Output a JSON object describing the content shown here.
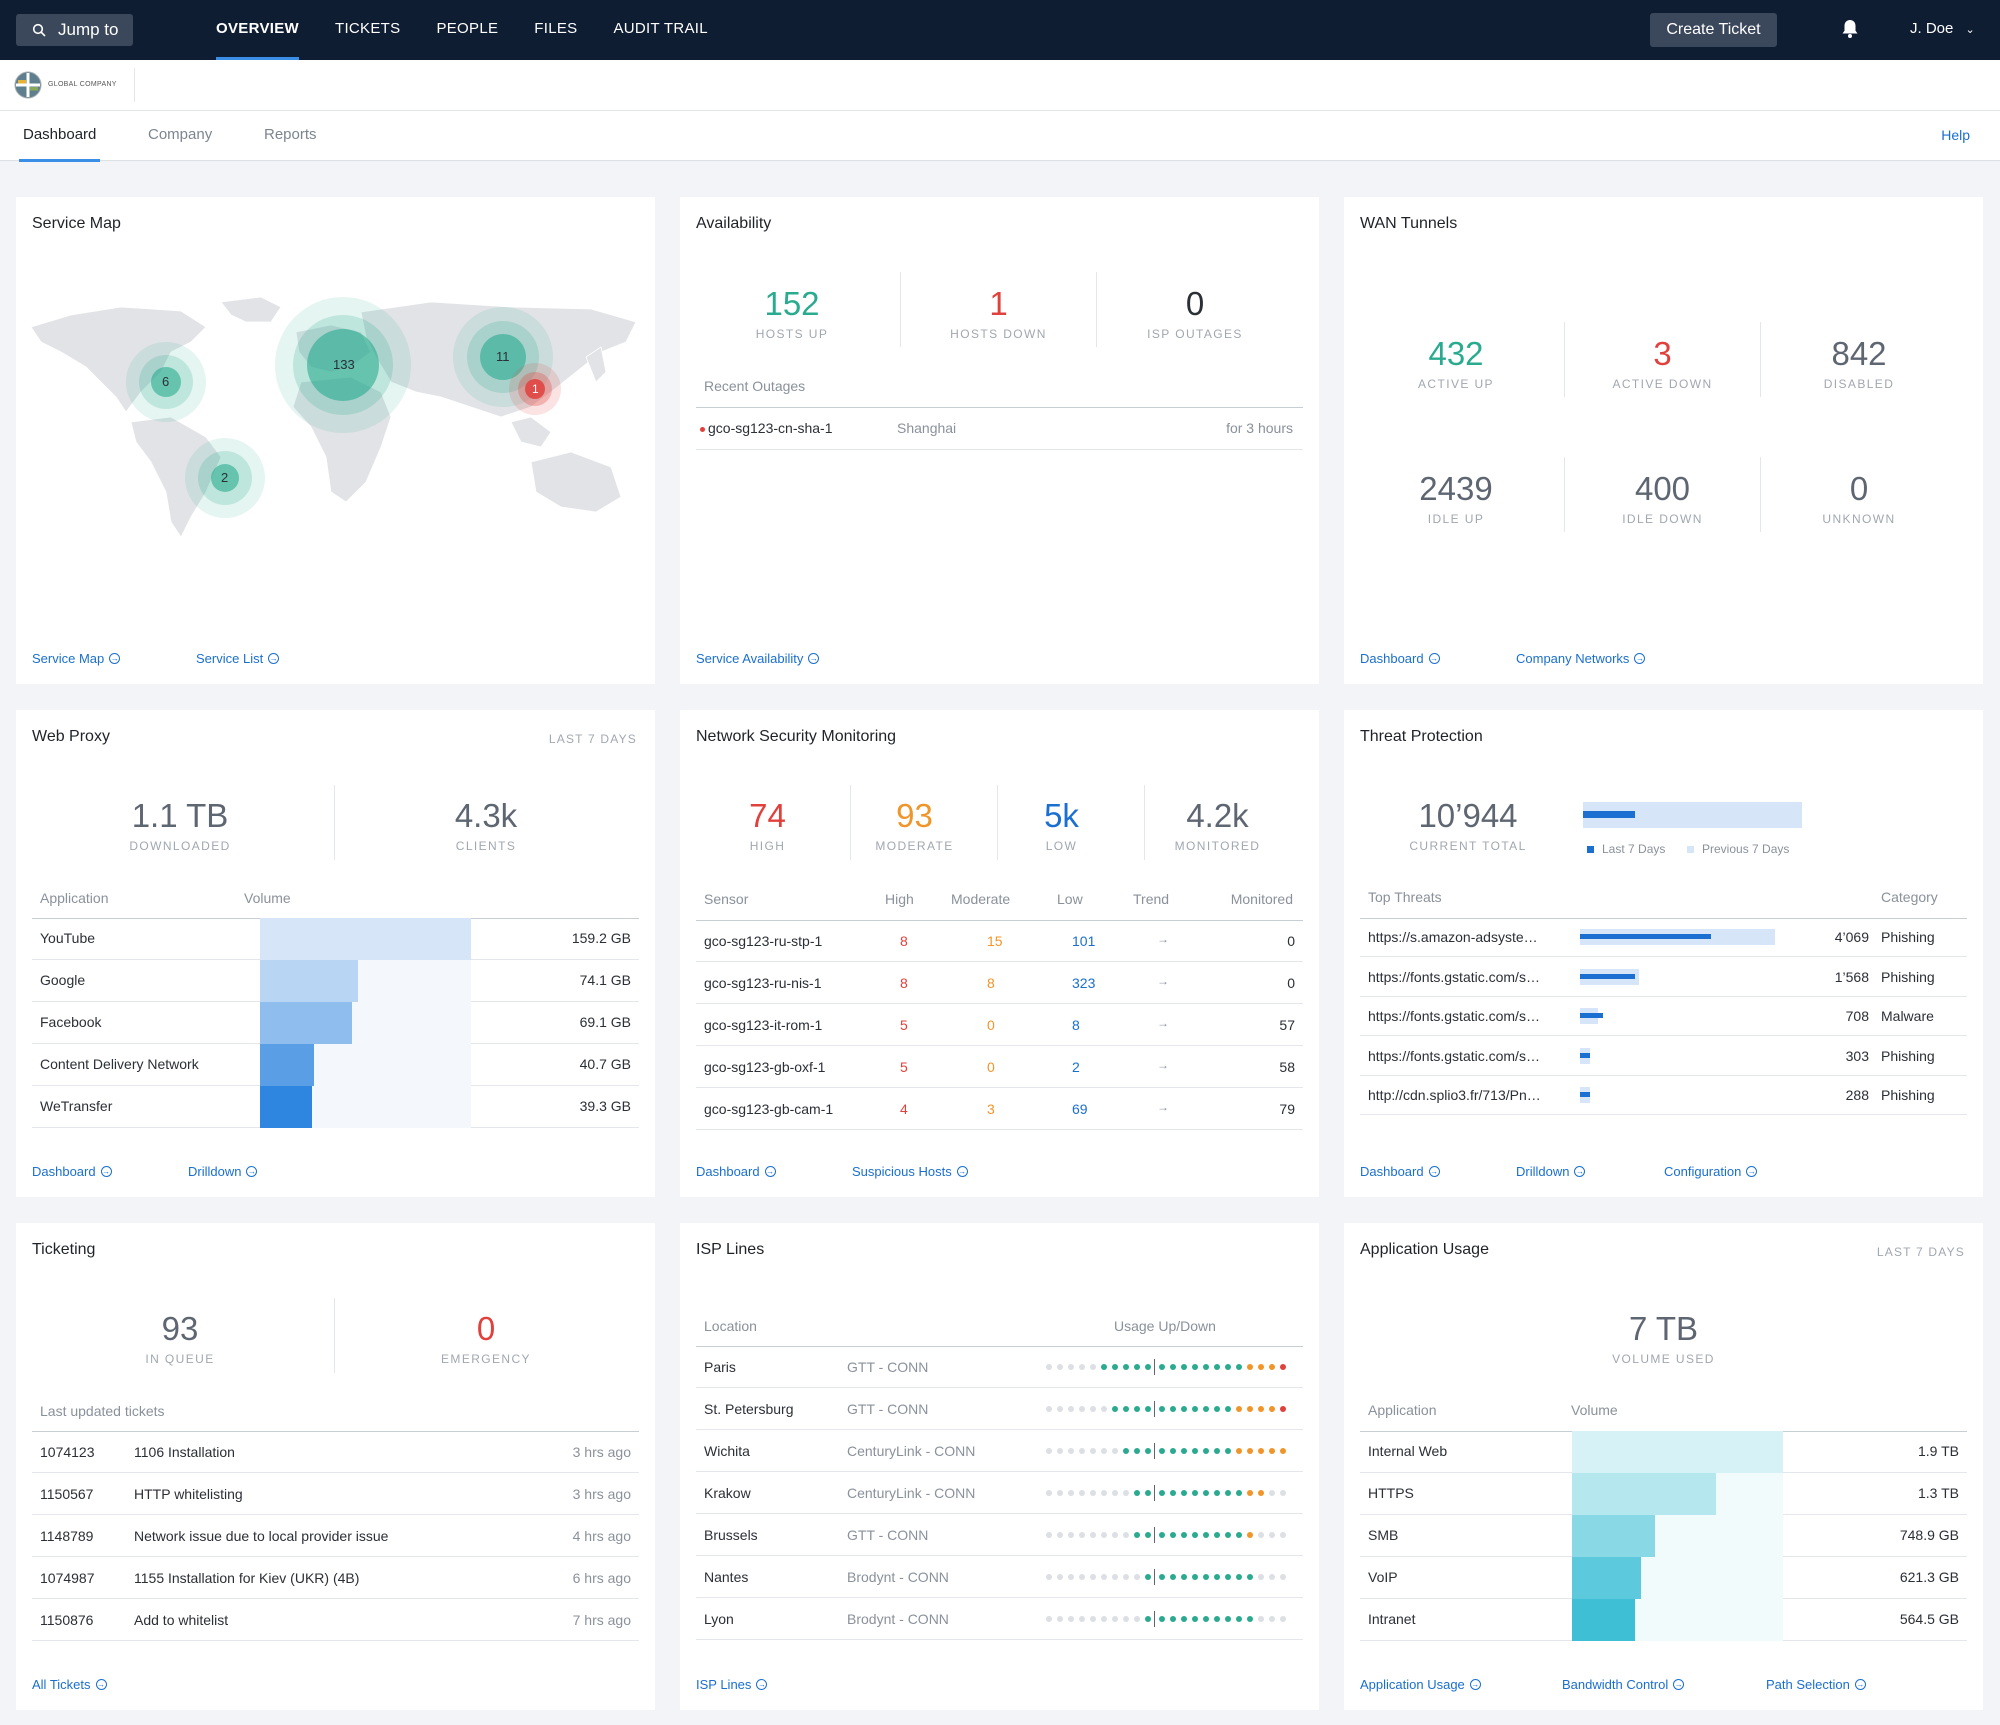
{
  "topbar": {
    "jump_label": "Jump to",
    "nav": [
      "OVERVIEW",
      "TICKETS",
      "PEOPLE",
      "FILES",
      "AUDIT TRAIL"
    ],
    "create_label": "Create Ticket",
    "user": "J. Doe"
  },
  "brand": {
    "name": "GLOBAL COMPANY"
  },
  "subnav": {
    "tabs": [
      "Dashboard",
      "Company",
      "Reports"
    ],
    "help": "Help"
  },
  "service_map": {
    "title": "Service Map",
    "clusters": [
      "133",
      "11",
      "6",
      "2",
      "1"
    ],
    "links": [
      "Service Map",
      "Service List"
    ]
  },
  "availability": {
    "title": "Availability",
    "stats": [
      {
        "value": "152",
        "label": "HOSTS UP"
      },
      {
        "value": "1",
        "label": "HOSTS DOWN"
      },
      {
        "value": "0",
        "label": "ISP OUTAGES"
      }
    ],
    "recent_label": "Recent Outages",
    "outage": {
      "host": "gco-sg123-cn-sha-1",
      "city": "Shanghai",
      "duration": "for 3 hours"
    },
    "links": [
      "Service Availability"
    ]
  },
  "wan": {
    "title": "WAN Tunnels",
    "stats": [
      {
        "value": "432",
        "label": "ACTIVE UP"
      },
      {
        "value": "3",
        "label": "ACTIVE DOWN"
      },
      {
        "value": "842",
        "label": "DISABLED"
      },
      {
        "value": "2439",
        "label": "IDLE UP"
      },
      {
        "value": "400",
        "label": "IDLE DOWN"
      },
      {
        "value": "0",
        "label": "UNKNOWN"
      }
    ],
    "links": [
      "Dashboard",
      "Company Networks"
    ]
  },
  "proxy": {
    "title": "Web Proxy",
    "range": "LAST 7 DAYS",
    "stats": [
      {
        "value": "1.1 TB",
        "label": "DOWNLOADED"
      },
      {
        "value": "4.3k",
        "label": "CLIENTS"
      }
    ],
    "headers": [
      "Application",
      "Volume"
    ],
    "rows": [
      {
        "app": "YouTube",
        "vol": "159.2 GB",
        "gb": 159.2,
        "color": "#d6e6f8"
      },
      {
        "app": "Google",
        "vol": "74.1 GB",
        "gb": 74.1,
        "color": "#b8d5f3"
      },
      {
        "app": "Facebook",
        "vol": "69.1 GB",
        "gb": 69.1,
        "color": "#8fbdee"
      },
      {
        "app": "Content Delivery Network",
        "vol": "40.7 GB",
        "gb": 40.7,
        "color": "#5a9fe6"
      },
      {
        "app": "WeTransfer",
        "vol": "39.3 GB",
        "gb": 39.3,
        "color": "#2f86e0"
      }
    ],
    "links": [
      "Dashboard",
      "Drilldown"
    ]
  },
  "nsm": {
    "title": "Network Security Monitoring",
    "stats": [
      {
        "value": "74",
        "label": "HIGH"
      },
      {
        "value": "93",
        "label": "MODERATE"
      },
      {
        "value": "5k",
        "label": "LOW"
      },
      {
        "value": "4.2k",
        "label": "MONITORED"
      }
    ],
    "headers": [
      "Sensor",
      "High",
      "Moderate",
      "Low",
      "Trend",
      "Monitored"
    ],
    "rows": [
      {
        "sensor": "gco-sg123-ru-stp-1",
        "high": "8",
        "mod": "15",
        "low": "101",
        "mon": "0"
      },
      {
        "sensor": "gco-sg123-ru-nis-1",
        "high": "8",
        "mod": "8",
        "low": "323",
        "mon": "0"
      },
      {
        "sensor": "gco-sg123-it-rom-1",
        "high": "5",
        "mod": "0",
        "low": "8",
        "mon": "57"
      },
      {
        "sensor": "gco-sg123-gb-oxf-1",
        "high": "5",
        "mod": "0",
        "low": "2",
        "mon": "58"
      },
      {
        "sensor": "gco-sg123-gb-cam-1",
        "high": "4",
        "mod": "3",
        "low": "69",
        "mon": "79"
      }
    ],
    "links": [
      "Dashboard",
      "Suspicious Hosts"
    ]
  },
  "threat": {
    "title": "Threat Protection",
    "stat": {
      "value": "10’944",
      "label": "CURRENT TOTAL"
    },
    "legend": [
      "Last 7 Days",
      "Previous 7 Days"
    ],
    "headers": [
      "Top Threats",
      "Category"
    ],
    "rows": [
      {
        "url": "https://s.amazon-adsyste…",
        "count": "4’069",
        "cat": "Phishing",
        "cur": 0.67,
        "prev": 1.0
      },
      {
        "url": "https://fonts.gstatic.com/s…",
        "count": "1’568",
        "cat": "Phishing",
        "cur": 0.28,
        "prev": 0.3
      },
      {
        "url": "https://fonts.gstatic.com/s…",
        "count": "708",
        "cat": "Malware",
        "cur": 0.12,
        "prev": 0.09
      },
      {
        "url": "https://fonts.gstatic.com/s…",
        "count": "303",
        "cat": "Phishing",
        "cur": 0.05,
        "prev": 0.05
      },
      {
        "url": "http://cdn.splio3.fr/713/Pn…",
        "count": "288",
        "cat": "Phishing",
        "cur": 0.05,
        "prev": 0.05
      }
    ],
    "links": [
      "Dashboard",
      "Drilldown",
      "Configuration"
    ]
  },
  "ticketing": {
    "title": "Ticketing",
    "stats": [
      {
        "value": "93",
        "label": "IN QUEUE"
      },
      {
        "value": "0",
        "label": "EMERGENCY"
      }
    ],
    "recent_label": "Last updated tickets",
    "rows": [
      {
        "id": "1074123",
        "title": "1106 Installation",
        "time": "3 hrs ago"
      },
      {
        "id": "1150567",
        "title": "HTTP whitelisting",
        "time": "3 hrs ago"
      },
      {
        "id": "1148789",
        "title": "Network issue due to local provider issue",
        "time": "4 hrs ago"
      },
      {
        "id": "1074987",
        "title": "1155 Installation for Kiev (UKR) (4B)",
        "time": "6 hrs ago"
      },
      {
        "id": "1150876",
        "title": "Add to whitelist",
        "time": "7 hrs ago"
      }
    ],
    "links": [
      "All Tickets"
    ]
  },
  "isp": {
    "title": "ISP Lines",
    "headers": [
      "Location",
      "Usage Up/Down"
    ],
    "rows": [
      {
        "loc": "Paris",
        "prov": "GTT - CONN",
        "up": 5,
        "down": [
          8,
          3,
          1
        ]
      },
      {
        "loc": "St. Petersburg",
        "prov": "GTT - CONN",
        "up": 4,
        "down": [
          7,
          4,
          1
        ]
      },
      {
        "loc": "Wichita",
        "prov": "CenturyLink - CONN",
        "up": 3,
        "down": [
          7,
          5,
          0
        ]
      },
      {
        "loc": "Krakow",
        "prov": "CenturyLink - CONN",
        "up": 2,
        "down": [
          8,
          2,
          0
        ]
      },
      {
        "loc": "Brussels",
        "prov": "GTT - CONN",
        "up": 2,
        "down": [
          8,
          1,
          0
        ]
      },
      {
        "loc": "Nantes",
        "prov": "Brodynt - CONN",
        "up": 1,
        "down": [
          9,
          0,
          0
        ]
      },
      {
        "loc": "Lyon",
        "prov": "Brodynt - CONN",
        "up": 1,
        "down": [
          9,
          0,
          0
        ]
      }
    ],
    "links": [
      "ISP Lines"
    ]
  },
  "appusage": {
    "title": "Application Usage",
    "range": "LAST 7 DAYS",
    "stat": {
      "value": "7 TB",
      "label": "VOLUME USED"
    },
    "headers": [
      "Application",
      "Volume"
    ],
    "rows": [
      {
        "app": "Internal Web",
        "vol": "1.9 TB",
        "gb": 1900,
        "color": "#d7f2f6"
      },
      {
        "app": "HTTPS",
        "vol": "1.3 TB",
        "gb": 1300,
        "color": "#b5e7ef"
      },
      {
        "app": "SMB",
        "vol": "748.9 GB",
        "gb": 748.9,
        "color": "#89d8e6"
      },
      {
        "app": "VoIP",
        "vol": "621.3 GB",
        "gb": 621.3,
        "color": "#5ccadc"
      },
      {
        "app": "Intranet",
        "vol": "564.5 GB",
        "gb": 564.5,
        "color": "#3fbfd5"
      }
    ],
    "links": [
      "Application Usage",
      "Bandwidth Control",
      "Path Selection"
    ]
  }
}
